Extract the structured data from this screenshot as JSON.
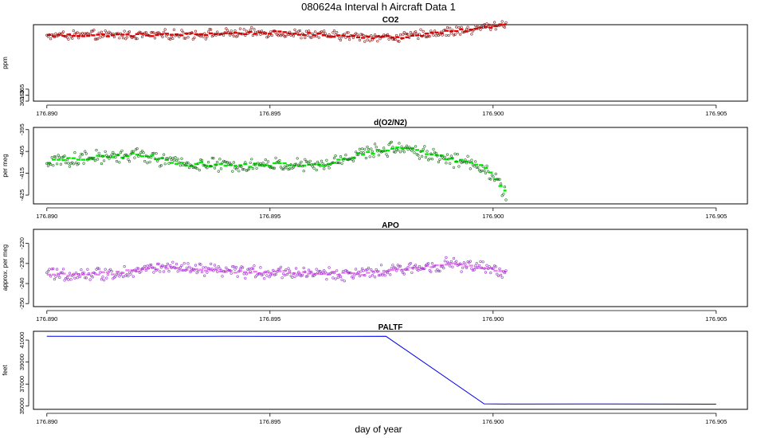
{
  "title": "080624a   Interval h Aircraft Data 1",
  "xlabel": "day of year",
  "chart_data": [
    {
      "type": "scatter",
      "title": "CO2",
      "ylabel": "ppm",
      "xlim": [
        176.8897,
        176.9057
      ],
      "ylim": [
        361,
        386.5
      ],
      "xticks": [
        "176.890",
        "176.895",
        "176.900",
        "176.905"
      ],
      "xtick_values": [
        176.89,
        176.895,
        176.9,
        176.905
      ],
      "yticks": [
        "361",
        "363",
        "365"
      ],
      "ytick_values": [
        361,
        363,
        365
      ],
      "point_color": "#8b1a1a",
      "segment_color": "#ee0000",
      "trend": [
        [
          176.89,
          382.9
        ],
        [
          176.8925,
          383.1
        ],
        [
          176.895,
          383.9
        ],
        [
          176.8962,
          383.0
        ],
        [
          176.8975,
          382.3
        ],
        [
          176.898,
          382.4
        ],
        [
          176.8985,
          383.5
        ],
        [
          176.8995,
          384.8
        ],
        [
          176.9003,
          387.0
        ]
      ],
      "noise": 1.3,
      "x_end": 176.9003
    },
    {
      "type": "scatter",
      "title": "d(O2/N2)",
      "ylabel": "per meg",
      "xlim": [
        176.8897,
        176.9057
      ],
      "ylim": [
        -429,
        -394
      ],
      "xticks": [
        "176.890",
        "176.895",
        "176.900",
        "176.905"
      ],
      "xtick_values": [
        176.89,
        176.895,
        176.9,
        176.905
      ],
      "yticks": [
        "-395",
        "-405",
        "-415",
        "-425"
      ],
      "ytick_values": [
        -395,
        -405,
        -415,
        -425
      ],
      "point_color": "#1a6b1a",
      "segment_color": "#00ee00",
      "trend": [
        [
          176.89,
          -409.5
        ],
        [
          176.891,
          -408.0
        ],
        [
          176.892,
          -406.5
        ],
        [
          176.893,
          -410.5
        ],
        [
          176.894,
          -411.5
        ],
        [
          176.895,
          -411.0
        ],
        [
          176.8962,
          -411.5
        ],
        [
          176.897,
          -406.0
        ],
        [
          176.898,
          -403.0
        ],
        [
          176.8988,
          -407.5
        ],
        [
          176.8995,
          -410.5
        ],
        [
          176.8998,
          -412.0
        ],
        [
          176.9003,
          -424.5
        ]
      ],
      "noise": 2.6,
      "x_end": 176.9003
    },
    {
      "type": "scatter",
      "title": "APO",
      "ylabel": "approx. per meg",
      "xlim": [
        176.8897,
        176.9057
      ],
      "ylim": [
        -251.5,
        -213
      ],
      "xticks": [
        "176.890",
        "176.895",
        "176.900",
        "176.905"
      ],
      "xtick_values": [
        176.89,
        176.895,
        176.9,
        176.905
      ],
      "yticks": [
        "-220",
        "-230",
        "-240",
        "-250"
      ],
      "ytick_values": [
        -220,
        -230,
        -240,
        -250
      ],
      "point_color": "#9932cc",
      "segment_color": "#ee82ee",
      "trend": [
        [
          176.89,
          -235.5
        ],
        [
          176.8915,
          -235.0
        ],
        [
          176.8925,
          -232.0
        ],
        [
          176.894,
          -234.0
        ],
        [
          176.8955,
          -234.5
        ],
        [
          176.897,
          -235.5
        ],
        [
          176.898,
          -233.0
        ],
        [
          176.899,
          -230.0
        ],
        [
          176.8997,
          -232.0
        ],
        [
          176.9003,
          -234.5
        ]
      ],
      "noise": 2.6,
      "x_end": 176.9003
    },
    {
      "type": "line",
      "title": "PALTF",
      "ylabel": "feet",
      "xlim": [
        176.8897,
        176.9057
      ],
      "ylim": [
        34700,
        41800
      ],
      "xticks": [
        "176.890",
        "176.895",
        "176.900",
        "176.905"
      ],
      "xtick_values": [
        176.89,
        176.895,
        176.9,
        176.905
      ],
      "yticks": [
        "35000",
        "37000",
        "39000",
        "41000"
      ],
      "ytick_values": [
        35000,
        37000,
        39000,
        41000
      ],
      "line_color": "#0000ee",
      "x": [
        176.89,
        176.892,
        176.894,
        176.896,
        176.8976,
        176.8998,
        176.9005,
        176.902,
        176.905
      ],
      "y": [
        41350,
        41330,
        41340,
        41330,
        41340,
        35200,
        35180,
        35190,
        35170
      ]
    }
  ]
}
